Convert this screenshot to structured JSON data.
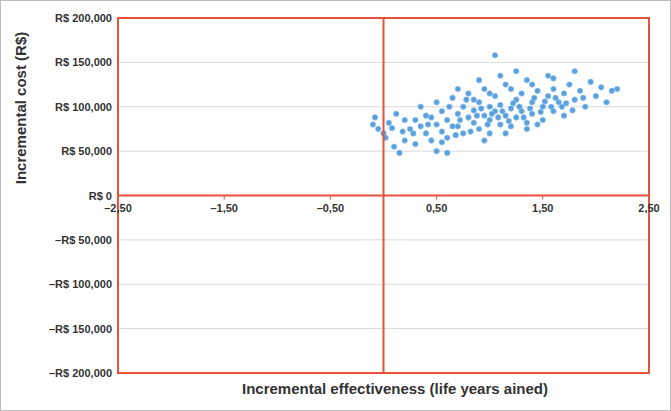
{
  "chart_data": {
    "type": "scatter",
    "x_label": "Incremental effectiveness (life years ained)",
    "y_label": "Incremental cost (R$)",
    "color": "#3b8fd8",
    "marker": "circle",
    "grid": true,
    "xlim": [
      -2.5,
      2.5
    ],
    "ylim": [
      -200000,
      200000
    ],
    "xticks": [
      {
        "value": -2.5,
        "label": "–2,50"
      },
      {
        "value": -1.5,
        "label": "–1,50"
      },
      {
        "value": -0.5,
        "label": "–0,50"
      },
      {
        "value": 0.5,
        "label": "0,50"
      },
      {
        "value": 1.5,
        "label": "1,50"
      },
      {
        "value": 2.5,
        "label": "2,50"
      }
    ],
    "yticks": [
      {
        "value": 200000,
        "label": "R$ 200,000"
      },
      {
        "value": 150000,
        "label": "R$ 150,000"
      },
      {
        "value": 100000,
        "label": "R$ 100,000"
      },
      {
        "value": 50000,
        "label": "R$ 50,000"
      },
      {
        "value": 0,
        "label": "R$ 0"
      },
      {
        "value": -50000,
        "label": "–R$ 50,000"
      },
      {
        "value": -100000,
        "label": "–R$ 100,000"
      },
      {
        "value": -150000,
        "label": "–R$ 150,000"
      },
      {
        "value": -200000,
        "label": "–R$ 200,000"
      }
    ],
    "x": [
      -0.1,
      -0.05,
      -0.08,
      0.0,
      0.02,
      0.05,
      0.1,
      0.15,
      0.12,
      0.2,
      0.25,
      0.3,
      0.3,
      0.35,
      0.4,
      0.4,
      0.45,
      0.5,
      0.5,
      0.55,
      0.55,
      0.6,
      0.6,
      0.65,
      0.7,
      0.7,
      0.75,
      0.75,
      0.8,
      0.8,
      0.85,
      0.85,
      0.9,
      0.9,
      0.95,
      0.95,
      1.0,
      1.0,
      1.0,
      1.05,
      1.05,
      1.1,
      1.1,
      1.15,
      1.15,
      1.2,
      1.2,
      1.25,
      1.25,
      1.3,
      1.3,
      1.35,
      1.35,
      1.4,
      1.4,
      1.45,
      1.5,
      1.5,
      1.55,
      1.55,
      1.6,
      1.6,
      1.65,
      1.7,
      1.7,
      1.75,
      1.8,
      1.85,
      1.9,
      1.95,
      2.0,
      2.05,
      2.15,
      2.2,
      1.05,
      0.5,
      0.6,
      1.25,
      1.8,
      0.2,
      0.35,
      0.45,
      0.65,
      0.72,
      0.82,
      0.88,
      0.92,
      0.98,
      1.02,
      1.08,
      1.12,
      1.18,
      1.22,
      1.28,
      1.32,
      1.38,
      1.42,
      1.48,
      1.52,
      1.58,
      1.62,
      1.68,
      1.72,
      1.78,
      0.62,
      0.78,
      0.68,
      0.42,
      0.28,
      0.18,
      0.08,
      1.45,
      1.88,
      2.1,
      0.95,
      1.35,
      0.55,
      1.15,
      0.85,
      1.0,
      1.2,
      1.4,
      1.6,
      0.7,
      0.9,
      1.1
    ],
    "values": [
      80000,
      75000,
      88000,
      70000,
      65000,
      82000,
      55000,
      48000,
      92000,
      62000,
      75000,
      85000,
      58000,
      100000,
      70000,
      90000,
      62000,
      80000,
      105000,
      72000,
      95000,
      85000,
      65000,
      110000,
      78000,
      92000,
      100000,
      70000,
      88000,
      115000,
      82000,
      96000,
      75000,
      105000,
      90000,
      120000,
      85000,
      100000,
      70000,
      95000,
      112000,
      80000,
      102000,
      90000,
      125000,
      98000,
      78000,
      108000,
      88000,
      115000,
      95000,
      82000,
      130000,
      105000,
      92000,
      118000,
      100000,
      85000,
      112000,
      135000,
      95000,
      120000,
      105000,
      115000,
      90000,
      125000,
      108000,
      118000,
      100000,
      128000,
      112000,
      122000,
      118000,
      120000,
      158000,
      50000,
      48000,
      140000,
      140000,
      85000,
      78000,
      88000,
      78000,
      85000,
      72000,
      90000,
      98000,
      80000,
      92000,
      88000,
      95000,
      84000,
      104000,
      100000,
      88000,
      98000,
      110000,
      94000,
      106000,
      100000,
      110000,
      100000,
      104000,
      96000,
      100000,
      108000,
      68000,
      80000,
      70000,
      72000,
      76000,
      80000,
      110000,
      105000,
      62000,
      75000,
      60000,
      70000,
      108000,
      115000,
      120000,
      125000,
      132000,
      120000,
      130000,
      135000
    ]
  }
}
